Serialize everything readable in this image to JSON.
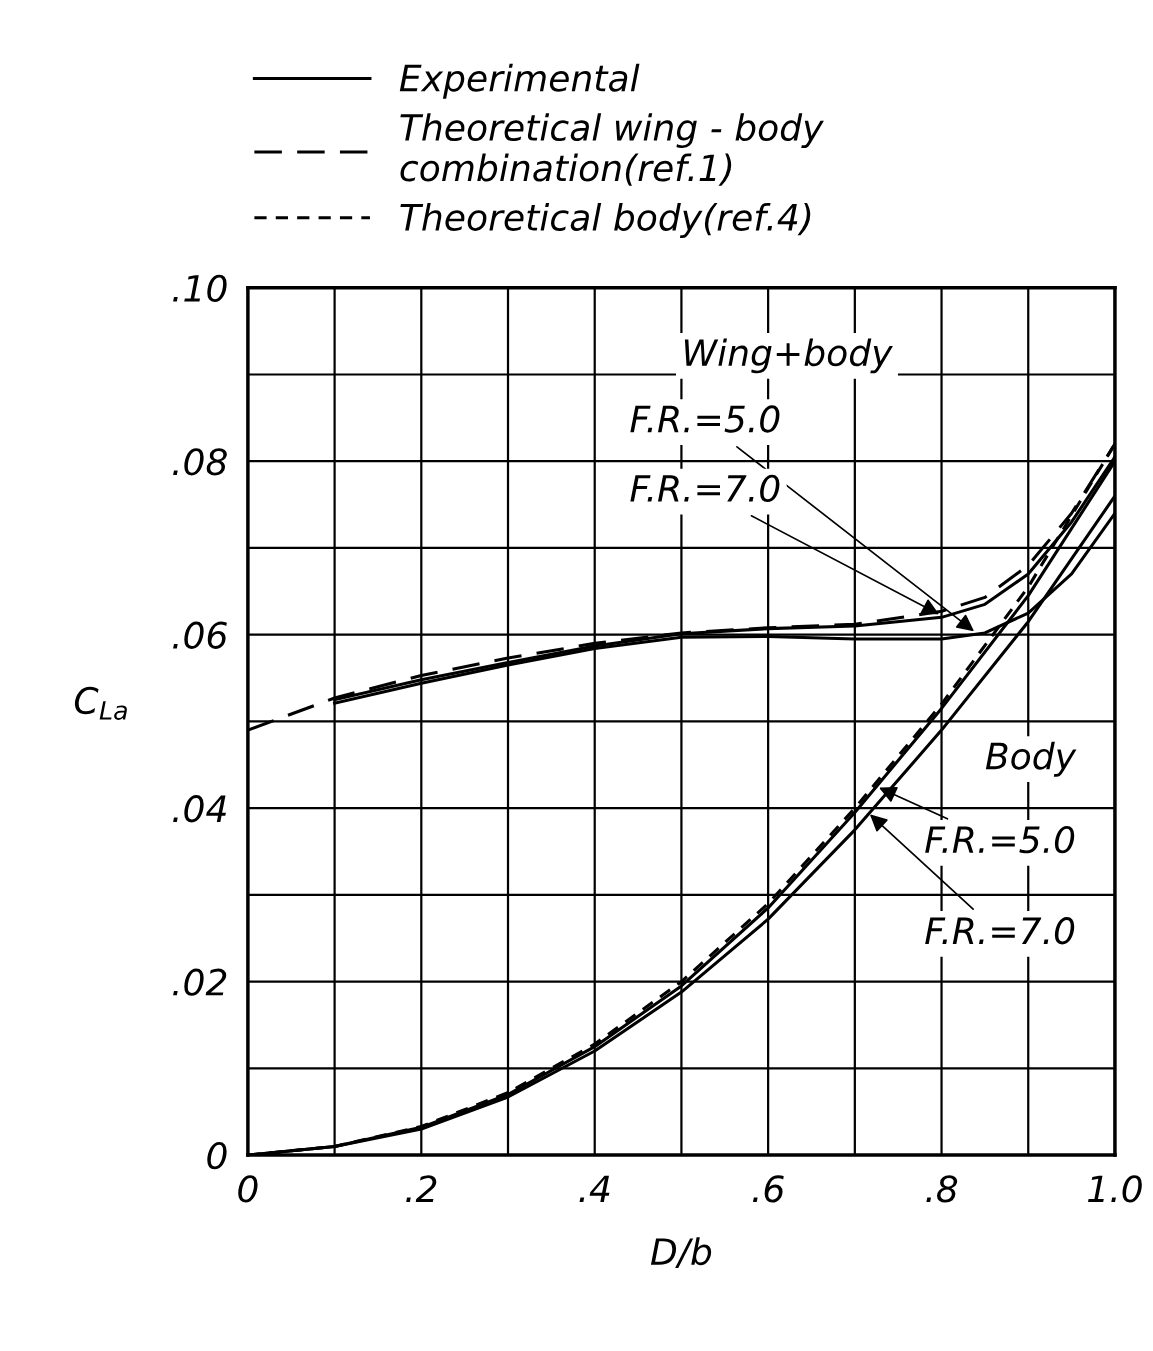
{
  "chart_data": {
    "type": "line",
    "xlabel": "D/b",
    "ylabel": "C$_{La}$",
    "xlim": [
      0,
      1.0
    ],
    "ylim": [
      0,
      0.1
    ],
    "xticks": [
      0,
      {
        "value": 0.1,
        "label": null
      },
      {
        "value": 0.2,
        "label": ".2"
      },
      {
        "value": 0.3,
        "label": null
      },
      {
        "value": 0.4,
        "label": ".4"
      },
      {
        "value": 0.5,
        "label": null
      },
      {
        "value": 0.6,
        "label": ".6"
      },
      {
        "value": 0.7,
        "label": null
      },
      {
        "value": 0.8,
        "label": ".8"
      },
      {
        "value": 0.9,
        "label": null
      },
      {
        "value": 1.0,
        "label": "1.0"
      }
    ],
    "yticks": [
      0,
      {
        "value": 0.01,
        "label": null
      },
      {
        "value": 0.02,
        "label": ".02"
      },
      {
        "value": 0.03,
        "label": null
      },
      {
        "value": 0.04,
        "label": ".04"
      },
      {
        "value": 0.05,
        "label": null
      },
      {
        "value": 0.06,
        "label": ".06"
      },
      {
        "value": 0.07,
        "label": null
      },
      {
        "value": 0.08,
        "label": ".08"
      },
      {
        "value": 0.09,
        "label": null
      },
      {
        "value": 0.1,
        "label": ".10"
      }
    ],
    "grid": true,
    "legend": "top",
    "marker": "none",
    "series": [
      {
        "name": "Experimental",
        "color": "#000000",
        "line_style": "solid",
        "x": [
          0.1,
          0.2,
          0.3,
          0.4,
          0.5,
          0.6,
          0.7,
          0.8,
          0.85,
          0.9,
          0.95,
          1.0
        ],
        "values": [
          0.0525,
          0.0548,
          0.0568,
          0.0587,
          0.0601,
          0.0607,
          0.061,
          0.062,
          0.0635,
          0.067,
          0.073,
          0.0805
        ]
      },
      {
        "color": "#000000",
        "line_style": "solid",
        "x": [
          0.1,
          0.2,
          0.3,
          0.4,
          0.5,
          0.6,
          0.7,
          0.8,
          0.85,
          0.9,
          0.95,
          1.0
        ],
        "values": [
          0.0521,
          0.0544,
          0.0565,
          0.0584,
          0.0597,
          0.0598,
          0.0595,
          0.0595,
          0.0602,
          0.0625,
          0.067,
          0.074
        ]
      },
      {
        "name": "Theoretical wing - body\ncombination(ref.1)",
        "color": "#000000",
        "line_style": "dashed",
        "x": [
          0,
          0.1,
          0.2,
          0.3,
          0.4,
          0.5,
          0.6,
          0.7,
          0.8,
          0.85,
          0.9,
          0.95,
          1.0
        ],
        "values": [
          0.049,
          0.0527,
          0.0553,
          0.0573,
          0.059,
          0.0602,
          0.0608,
          0.0612,
          0.0627,
          0.0643,
          0.068,
          0.074,
          0.082
        ]
      },
      {
        "color": "#000000",
        "line_style": "solid",
        "x": [
          0,
          0.1,
          0.2,
          0.3,
          0.4,
          0.5,
          0.6,
          0.7,
          0.8,
          0.9,
          1.0
        ],
        "values": [
          0,
          0.001,
          0.0032,
          0.007,
          0.0125,
          0.0195,
          0.0285,
          0.0395,
          0.0515,
          0.0645,
          0.08
        ]
      },
      {
        "color": "#000000",
        "line_style": "solid",
        "x": [
          0,
          0.1,
          0.2,
          0.3,
          0.4,
          0.5,
          0.6,
          0.7,
          0.8,
          0.9,
          1.0
        ],
        "values": [
          0,
          0.001,
          0.003,
          0.0067,
          0.012,
          0.0188,
          0.0272,
          0.0375,
          0.049,
          0.0615,
          0.076
        ]
      },
      {
        "name": "Theoretical body(ref.4)",
        "color": "#000000",
        "line_style": "dotted",
        "x": [
          0,
          0.1,
          0.2,
          0.3,
          0.4,
          0.5,
          0.6,
          0.7,
          0.8,
          0.9,
          1.0
        ],
        "values": [
          0,
          0.001,
          0.0033,
          0.0072,
          0.0128,
          0.02,
          0.029,
          0.04,
          0.052,
          0.0655,
          0.082
        ]
      }
    ],
    "annotations": [
      "Wing+body",
      "Body",
      {
        "text": "F.R.=5.0",
        "x": 0.84,
        "y": 0.0602
      },
      {
        "text": "F.R.=7.0",
        "x": 0.8,
        "y": 0.0622
      },
      {
        "text": "F.R.=5.0",
        "x": 0.725,
        "y": 0.0425
      },
      {
        "text": "F.R.=7.0",
        "x": 0.715,
        "y": 0.0395
      }
    ]
  }
}
